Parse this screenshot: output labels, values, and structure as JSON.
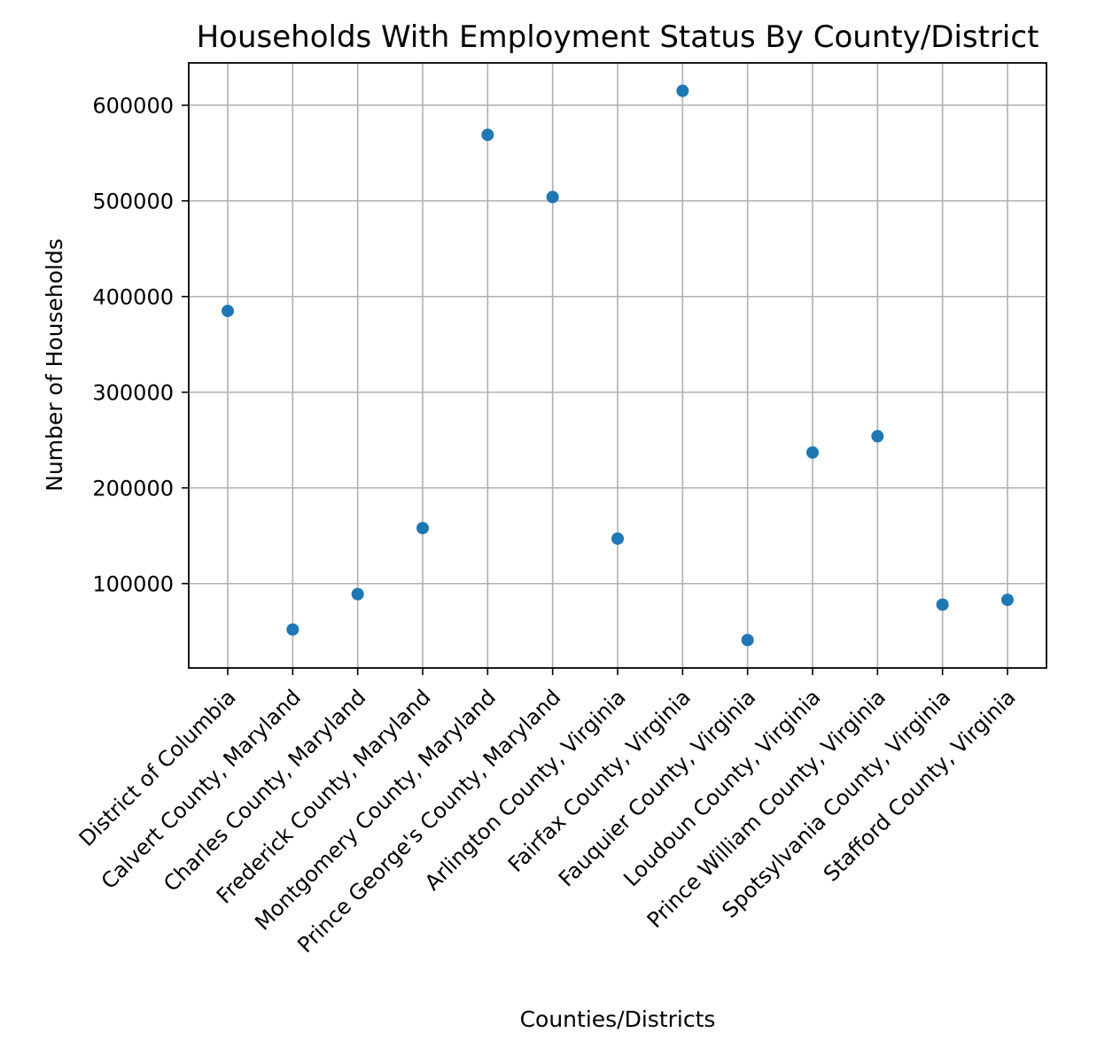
{
  "chart_data": {
    "type": "scatter",
    "title": "Households With Employment Status By County/District",
    "xlabel": "Counties/Districts",
    "ylabel": "Number of Households",
    "categories": [
      "District of Columbia",
      "Calvert County, Maryland",
      "Charles County, Maryland",
      "Frederick County, Maryland",
      "Montgomery County, Maryland",
      "Prince George's County, Maryland",
      "Arlington County, Virginia",
      "Fairfax County, Virginia",
      "Fauquier County, Virginia",
      "Loudoun County, Virginia",
      "Prince William County, Virginia",
      "Spotsylvania County, Virginia",
      "Stafford County, Virginia"
    ],
    "values": [
      385000,
      52000,
      89000,
      158000,
      569000,
      504000,
      147000,
      615000,
      41000,
      237000,
      254000,
      78000,
      83000
    ],
    "yticks": [
      100000,
      200000,
      300000,
      400000,
      500000,
      600000
    ],
    "ytick_labels": [
      "100000",
      "200000",
      "300000",
      "400000",
      "500000",
      "600000"
    ],
    "ylim": [
      11800,
      644200
    ],
    "grid": true,
    "marker_color": "#1f77b4"
  }
}
